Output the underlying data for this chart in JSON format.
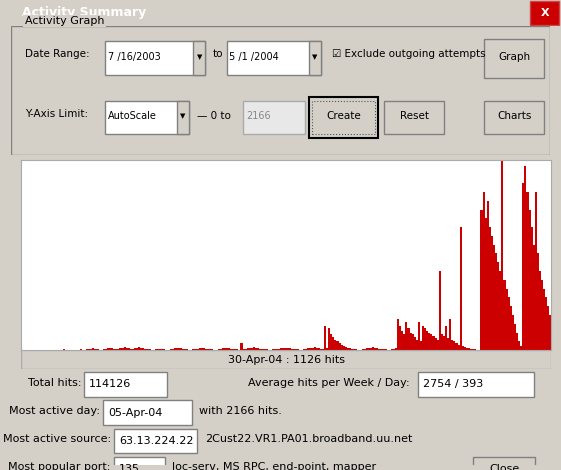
{
  "title": "Activity Summary",
  "chart_title": "Activity Graph",
  "date_range_from": "7 /16/2003",
  "date_range_to": "5 /1 /2004",
  "y_axis_label": "Y-Axis Limit:",
  "y_axis_scale": "AutoScale",
  "y_axis_max": "2166",
  "exclude_outgoing": true,
  "status_text": "30-Apr-04 : 1126 hits",
  "total_hits": "114126",
  "avg_hits": "2754 / 393",
  "most_active_day": "05-Apr-04",
  "most_active_day_hits": "2166",
  "most_active_source_ip": "63.13.224.22",
  "most_active_source_name": "2Cust22.VR1.PA01.broadband.uu.net",
  "most_popular_port": "135",
  "most_popular_port_desc": "loc-serv, MS RPC, end-point, mapper",
  "bar_color": "#cc0000",
  "bg_color": "#d4d0c8",
  "chart_bg": "#ffffff",
  "chart_grid_color": "#cccccc",
  "title_bar_color": "#0a246a",
  "ylim": [
    0,
    2166
  ],
  "bar_values": [
    2,
    0,
    0,
    0,
    0,
    0,
    1,
    0,
    0,
    0,
    3,
    0,
    0,
    0,
    5,
    2,
    0,
    0,
    0,
    0,
    8,
    3,
    0,
    2,
    0,
    0,
    0,
    0,
    12,
    5,
    3,
    8,
    10,
    15,
    20,
    12,
    8,
    5,
    3,
    10,
    18,
    25,
    30,
    22,
    15,
    12,
    18,
    25,
    30,
    35,
    28,
    20,
    15,
    18,
    22,
    28,
    32,
    25,
    20,
    15,
    10,
    8,
    5,
    3,
    8,
    12,
    15,
    10,
    8,
    5,
    3,
    8,
    15,
    20,
    25,
    30,
    22,
    18,
    12,
    8,
    5,
    3,
    8,
    12,
    18,
    25,
    30,
    22,
    18,
    15,
    12,
    8,
    5,
    3,
    8,
    15,
    20,
    25,
    30,
    22,
    18,
    15,
    12,
    8,
    5,
    80,
    12,
    15,
    20,
    25,
    30,
    35,
    28,
    22,
    18,
    15,
    12,
    8,
    5,
    3,
    8,
    12,
    15,
    18,
    22,
    25,
    30,
    28,
    22,
    18,
    15,
    12,
    8,
    5,
    3,
    8,
    15,
    20,
    25,
    30,
    35,
    28,
    22,
    18,
    15,
    280,
    20,
    250,
    180,
    150,
    120,
    100,
    80,
    60,
    50,
    40,
    30,
    20,
    15,
    10,
    8,
    5,
    3,
    8,
    15,
    20,
    25,
    30,
    35,
    28,
    22,
    18,
    15,
    12,
    8,
    5,
    3,
    8,
    15,
    20,
    350,
    280,
    220,
    180,
    320,
    250,
    200,
    180,
    150,
    120,
    320,
    100,
    280,
    250,
    220,
    200,
    180,
    160,
    140,
    120,
    900,
    180,
    160,
    280,
    140,
    350,
    120,
    100,
    80,
    60,
    1400,
    50,
    40,
    30,
    20,
    15,
    10,
    8,
    5,
    3,
    1600,
    1800,
    1500,
    1700,
    1400,
    1300,
    1200,
    1100,
    1000,
    900,
    2166,
    800,
    700,
    600,
    500,
    400,
    300,
    200,
    100,
    50,
    1900,
    2100,
    1800,
    1600,
    1400,
    1200,
    1800,
    1100,
    900,
    800,
    700,
    600,
    500,
    400
  ]
}
